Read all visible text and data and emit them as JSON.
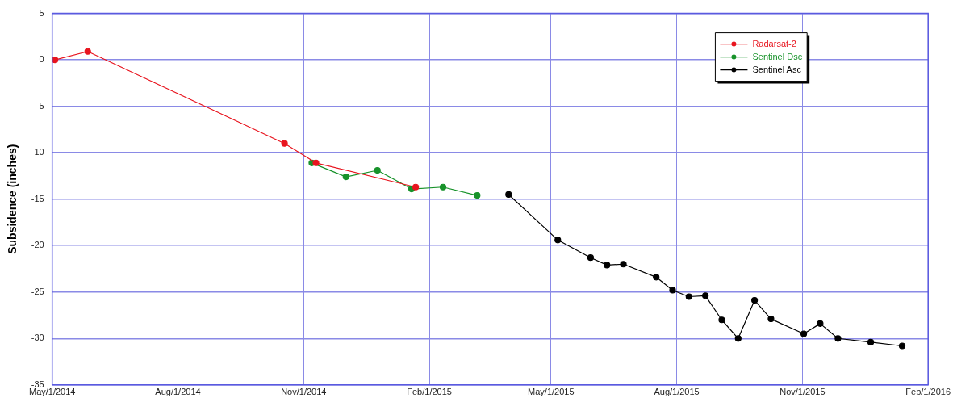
{
  "chart_data": {
    "type": "line",
    "ylabel": "Subsidence (inches)",
    "xlim": [
      "2014-05-01",
      "2016-02-01"
    ],
    "xticks": [
      {
        "value": "2014-05-01",
        "label": "May/1/2014"
      },
      {
        "value": "2014-08-01",
        "label": "Aug/1/2014"
      },
      {
        "value": "2014-11-01",
        "label": "Nov/1/2014"
      },
      {
        "value": "2015-02-01",
        "label": "Feb/1/2015"
      },
      {
        "value": "2015-05-01",
        "label": "May/1/2015"
      },
      {
        "value": "2015-08-01",
        "label": "Aug/1/2015"
      },
      {
        "value": "2015-11-01",
        "label": "Nov/1/2015"
      },
      {
        "value": "2016-02-01",
        "label": "Feb/1/2016"
      }
    ],
    "ylim": [
      -35,
      5
    ],
    "yticks": [
      -35,
      -30,
      -25,
      -20,
      -15,
      -10,
      -5,
      0,
      5
    ],
    "grid": true,
    "legend": "top right",
    "marker": "circle",
    "line_style": "solid",
    "series": [
      {
        "name": "Radarsat-2",
        "color": "#e8141e",
        "x": [
          "2014-05-03",
          "2014-05-27",
          "2014-10-18",
          "2014-11-10",
          "2015-01-22"
        ],
        "values": [
          0,
          0.9,
          -9.0,
          -11.1,
          -13.7
        ]
      },
      {
        "name": "Sentinel Dsc",
        "color": "#17922a",
        "x": [
          "2014-11-07",
          "2014-12-02",
          "2014-12-25",
          "2015-01-19",
          "2015-02-11",
          "2015-03-08"
        ],
        "values": [
          -11.1,
          -12.6,
          -11.9,
          -13.9,
          -13.7,
          -14.6
        ]
      },
      {
        "name": "Sentinel Asc",
        "color": "#000000",
        "x": [
          "2015-03-31",
          "2015-05-06",
          "2015-05-30",
          "2015-06-11",
          "2015-06-23",
          "2015-07-17",
          "2015-07-29",
          "2015-08-10",
          "2015-08-22",
          "2015-09-03",
          "2015-09-15",
          "2015-09-27",
          "2015-10-09",
          "2015-11-02",
          "2015-11-14",
          "2015-11-27",
          "2015-12-21",
          "2016-01-13"
        ],
        "values": [
          -14.5,
          -19.4,
          -21.3,
          -22.1,
          -22.0,
          -23.4,
          -24.8,
          -25.5,
          -25.4,
          -28.0,
          -30.0,
          -25.9,
          -27.9,
          -29.5,
          -28.4,
          -30.0,
          -30.4,
          -30.8
        ]
      }
    ]
  }
}
